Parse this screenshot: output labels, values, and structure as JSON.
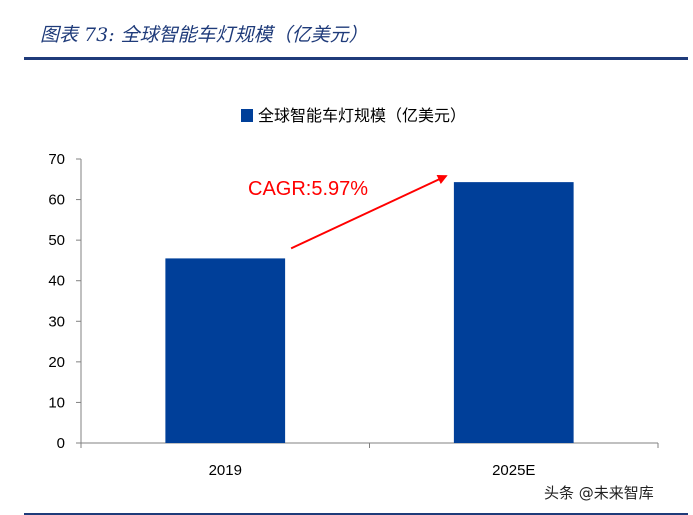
{
  "figure": {
    "title": "图表 73:  全球智能车灯规模（亿美元）"
  },
  "watermark": "头条 @未来智库",
  "colors": {
    "bar": "#003f99",
    "accent": "#1f3b7a",
    "annotation": "#ff0000"
  },
  "chart_data": {
    "type": "bar",
    "categories": [
      "2019",
      "2025E"
    ],
    "series": [
      {
        "name": "全球智能车灯规模（亿美元）",
        "values": [
          45.5,
          64.3
        ]
      }
    ],
    "ylim": [
      0,
      70
    ],
    "yticks": [
      0,
      10,
      20,
      30,
      40,
      50,
      60,
      70
    ],
    "legend": "top",
    "grid": false,
    "annotation": {
      "text": "CAGR:5.97%",
      "type": "arrow",
      "from": "2019",
      "to": "2025E"
    }
  }
}
